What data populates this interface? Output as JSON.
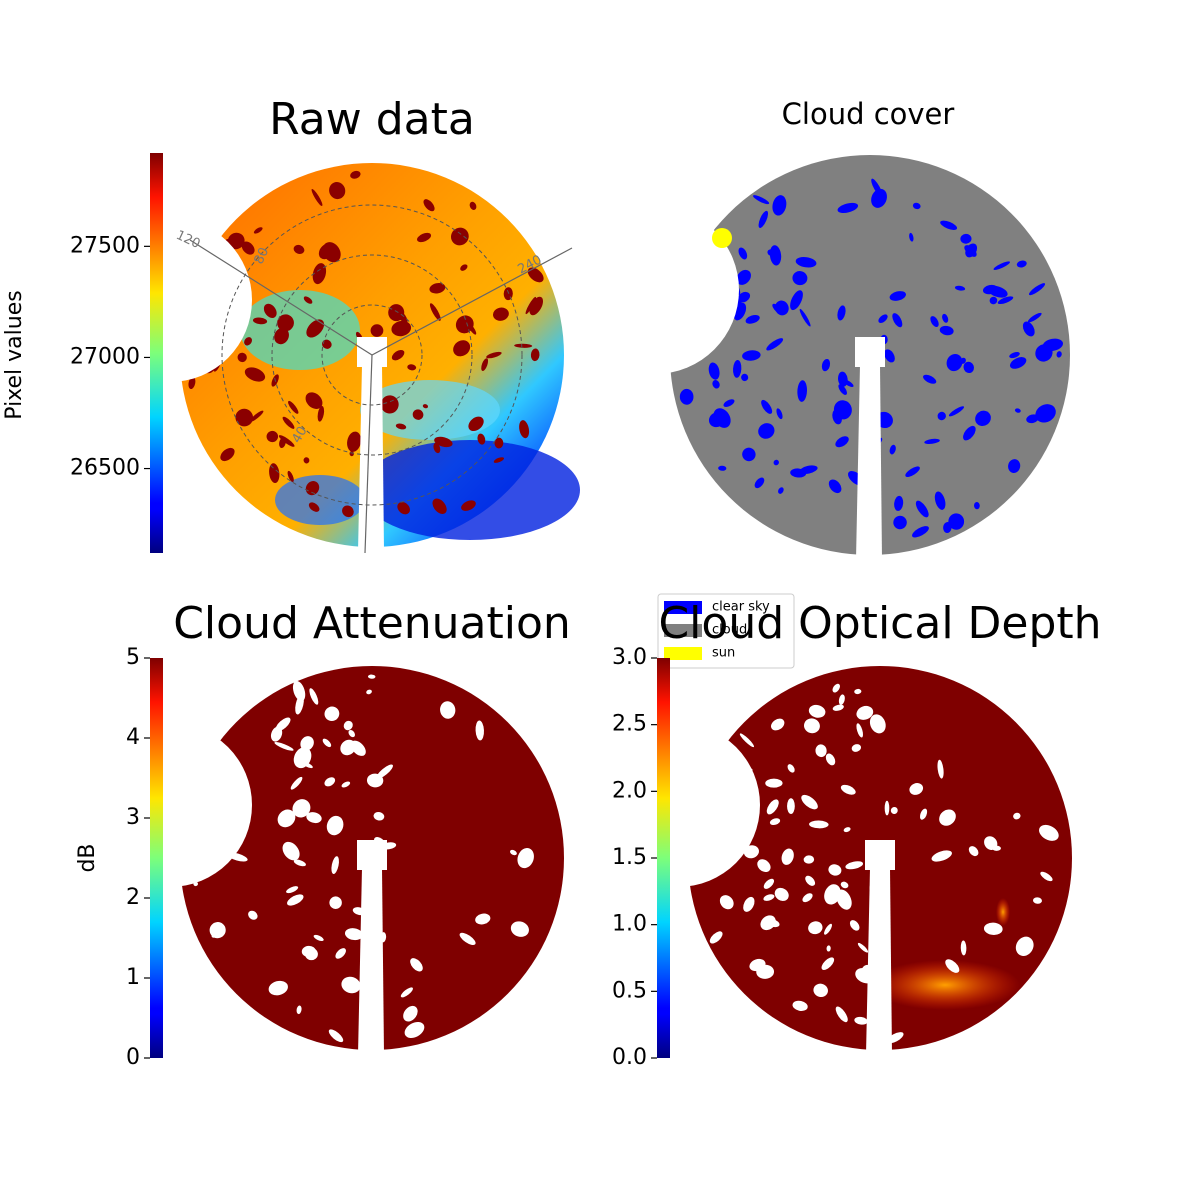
{
  "chart_data": [
    {
      "type": "image",
      "title": "Raw data",
      "colorbar": {
        "label": "Pixel values",
        "lim": [
          26120,
          27920
        ],
        "ticks": [
          26500,
          27000,
          27500
        ]
      },
      "annotations": [
        "120",
        "240",
        "80",
        "40"
      ]
    },
    {
      "type": "image",
      "title": "Cloud cover",
      "legend": [
        {
          "name": "clear sky",
          "color": "#0000ff"
        },
        {
          "name": "cloud",
          "color": "#808080"
        },
        {
          "name": "sun",
          "color": "#ffff00"
        }
      ]
    },
    {
      "type": "image",
      "title": "Cloud Attenuation",
      "colorbar": {
        "label": "dB",
        "lim": [
          0,
          5
        ],
        "ticks": [
          0,
          1,
          2,
          3,
          4,
          5
        ]
      }
    },
    {
      "type": "image",
      "title": "Cloud Optical Depth",
      "colorbar": {
        "lim": [
          0,
          3
        ],
        "ticks": [
          {
            "value": 0,
            "label": "0.0"
          },
          0.5,
          {
            "value": 1,
            "label": "1.0"
          },
          1.5,
          {
            "value": 2,
            "label": "2.0"
          },
          2.5,
          {
            "value": 3,
            "label": "3.0"
          }
        ]
      }
    }
  ]
}
